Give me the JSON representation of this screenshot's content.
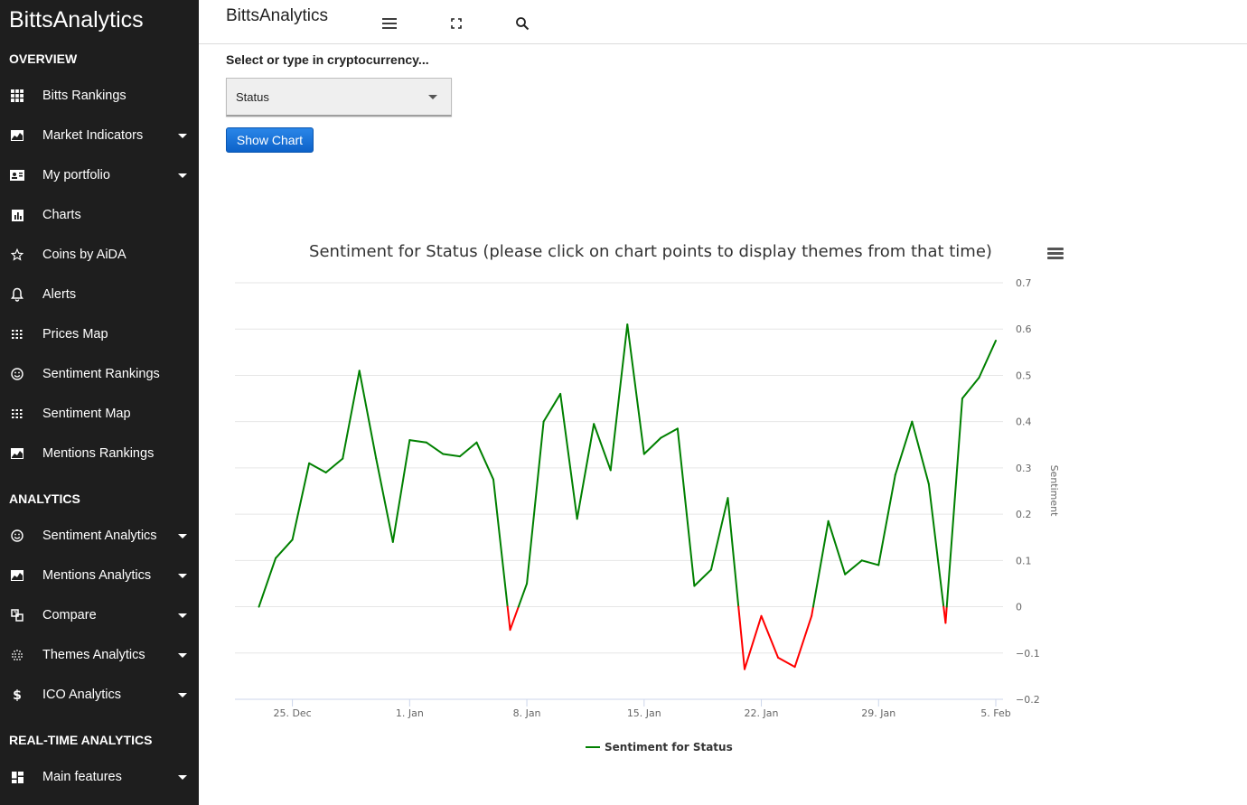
{
  "sidebar": {
    "brand": "BittsAnalytics",
    "sections": {
      "overview": "OVERVIEW",
      "analytics": "ANALYTICS",
      "realtime": "REAL-TIME ANALYTICS"
    },
    "items": [
      {
        "label": "Bitts Rankings",
        "icon": "grid-icon",
        "expandable": false
      },
      {
        "label": "Market Indicators",
        "icon": "area-chart-icon",
        "expandable": true
      },
      {
        "label": "My portfolio",
        "icon": "id-card-icon",
        "expandable": true
      },
      {
        "label": "Charts",
        "icon": "bar-chart-icon",
        "expandable": false
      },
      {
        "label": "Coins by AiDA",
        "icon": "star-icon",
        "expandable": false
      },
      {
        "label": "Alerts",
        "icon": "bell-icon",
        "expandable": false
      },
      {
        "label": "Prices Map",
        "icon": "dots-grid-icon",
        "expandable": false
      },
      {
        "label": "Sentiment Rankings",
        "icon": "smiley-icon",
        "expandable": false
      },
      {
        "label": "Sentiment Map",
        "icon": "dots-grid-icon",
        "expandable": false
      },
      {
        "label": "Mentions Rankings",
        "icon": "area-chart-icon",
        "expandable": false
      },
      {
        "label": "Sentiment Analytics",
        "icon": "smiley-icon",
        "expandable": true
      },
      {
        "label": "Mentions Analytics",
        "icon": "area-chart-icon",
        "expandable": true
      },
      {
        "label": "Compare",
        "icon": "compare-icon",
        "expandable": true
      },
      {
        "label": "Themes Analytics",
        "icon": "dots-sphere-icon",
        "expandable": true
      },
      {
        "label": "ICO Analytics",
        "icon": "dollar-icon",
        "expandable": true
      },
      {
        "label": "Main features",
        "icon": "dashboard-icon",
        "expandable": true
      }
    ]
  },
  "topbar": {
    "title": "BittsAnalytics",
    "icons": [
      "menu-icon",
      "fullscreen-icon",
      "search-icon"
    ]
  },
  "form": {
    "label": "Select or type in cryptocurrency...",
    "selected": "Status",
    "button": "Show Chart"
  },
  "colors": {
    "positive": "#008000",
    "negative": "#ff0000",
    "sidebar_bg": "#1e1e1e",
    "button": "#1a73d9"
  },
  "chart_data": {
    "type": "line",
    "title": "Sentiment for Status (please click on chart points to display themes from that time)",
    "ylabel": "Sentiment",
    "xlabel": "",
    "ylim": [
      -0.2,
      0.7
    ],
    "yticks": [
      -0.2,
      -0.1,
      0,
      0.1,
      0.2,
      0.3,
      0.4,
      0.5,
      0.6,
      0.7
    ],
    "ytick_labels": [
      "−0.2",
      "−0.1",
      "0",
      "0.1",
      "0.2",
      "0.3",
      "0.4",
      "0.5",
      "0.6",
      "0.7"
    ],
    "y_axis_side": "right",
    "grid": true,
    "legend": "bottom-center",
    "x_start": "2017-12-22",
    "x_end": "2018-02-05",
    "xticks": [
      {
        "date": "2017-12-25",
        "label": "25. Dec"
      },
      {
        "date": "2018-01-01",
        "label": "1. Jan"
      },
      {
        "date": "2018-01-08",
        "label": "8. Jan"
      },
      {
        "date": "2018-01-15",
        "label": "15. Jan"
      },
      {
        "date": "2018-01-22",
        "label": "22. Jan"
      },
      {
        "date": "2018-01-29",
        "label": "29. Jan"
      },
      {
        "date": "2018-02-05",
        "label": "5. Feb"
      }
    ],
    "series": [
      {
        "name": "Sentiment for Status",
        "x": [
          "2017-12-23",
          "2017-12-24",
          "2017-12-25",
          "2017-12-26",
          "2017-12-27",
          "2017-12-28",
          "2017-12-29",
          "2017-12-30",
          "2017-12-31",
          "2018-01-01",
          "2018-01-02",
          "2018-01-03",
          "2018-01-04",
          "2018-01-05",
          "2018-01-06",
          "2018-01-07",
          "2018-01-08",
          "2018-01-09",
          "2018-01-10",
          "2018-01-11",
          "2018-01-12",
          "2018-01-13",
          "2018-01-14",
          "2018-01-15",
          "2018-01-16",
          "2018-01-17",
          "2018-01-18",
          "2018-01-19",
          "2018-01-20",
          "2018-01-21",
          "2018-01-22",
          "2018-01-23",
          "2018-01-24",
          "2018-01-25",
          "2018-01-26",
          "2018-01-27",
          "2018-01-28",
          "2018-01-29",
          "2018-01-30",
          "2018-01-31",
          "2018-02-01",
          "2018-02-02",
          "2018-02-03",
          "2018-02-04",
          "2018-02-05"
        ],
        "values": [
          0.0,
          0.105,
          0.145,
          0.31,
          0.29,
          0.32,
          0.51,
          0.32,
          0.14,
          0.36,
          0.355,
          0.33,
          0.325,
          0.355,
          0.275,
          -0.05,
          0.05,
          0.4,
          0.46,
          0.19,
          0.395,
          0.295,
          0.61,
          0.33,
          0.365,
          0.385,
          0.045,
          0.08,
          0.235,
          -0.135,
          -0.02,
          -0.11,
          -0.13,
          -0.02,
          0.185,
          0.07,
          0.1,
          0.09,
          0.285,
          0.4,
          0.265,
          -0.035,
          0.45,
          0.495,
          0.575
        ]
      }
    ]
  }
}
